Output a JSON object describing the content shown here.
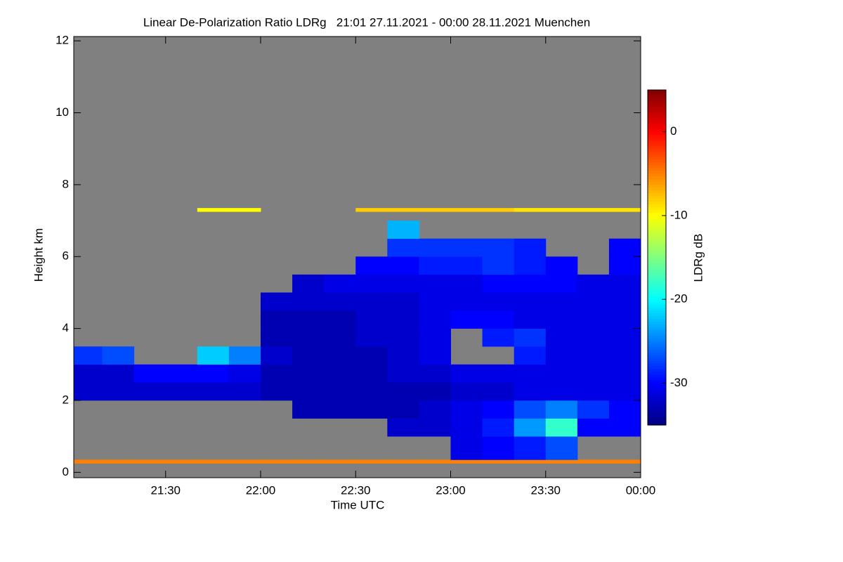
{
  "chart_data": {
    "type": "heatmap",
    "title": "Linear De-Polarization Ratio LDRg   21:01 27.11.2021 - 00:00 28.11.2021 Muenchen",
    "xlabel": "Time UTC",
    "ylabel": "Height km",
    "colorbar_label": "LDRg dB",
    "background": "#808080",
    "xlim": [
      1261,
      1440
    ],
    "xticks": [
      {
        "value": 1290,
        "label": "21:30"
      },
      {
        "value": 1320,
        "label": "22:00"
      },
      {
        "value": 1350,
        "label": "22:30"
      },
      {
        "value": 1380,
        "label": "23:00"
      },
      {
        "value": 1410,
        "label": "23:30"
      },
      {
        "value": 1440,
        "label": "00:00"
      }
    ],
    "ylim": [
      -0.15,
      12.12
    ],
    "yticks": [
      0,
      2,
      4,
      6,
      8,
      10,
      12
    ],
    "zlim": [
      -35,
      5
    ],
    "zticks": [
      0,
      -10,
      -20,
      -30
    ],
    "colormap": "jet",
    "x_bins": [
      1261,
      1270,
      1280,
      1290,
      1300,
      1310,
      1320,
      1330,
      1340,
      1350,
      1360,
      1370,
      1380,
      1390,
      1400,
      1410,
      1420,
      1430,
      1440
    ],
    "y_bins": [
      0,
      0.25,
      0.35,
      1,
      1.5,
      2,
      2.5,
      3,
      3.5,
      4,
      4.5,
      5,
      5.5,
      6,
      6.5,
      7,
      7.25,
      7.35
    ],
    "z": [
      [
        null,
        null,
        null,
        null,
        null,
        null,
        null,
        null,
        null,
        null,
        null,
        null,
        null,
        null,
        null,
        null,
        null,
        null
      ],
      [
        -5,
        -5,
        -5,
        -5,
        -5,
        -5,
        -5,
        -5,
        -5,
        -5,
        -5,
        -5,
        -5,
        -5,
        -5,
        -5,
        -5,
        -5
      ],
      [
        null,
        null,
        null,
        null,
        null,
        null,
        null,
        null,
        null,
        null,
        null,
        null,
        -31,
        -30,
        -29,
        -27,
        null,
        null
      ],
      [
        null,
        null,
        null,
        null,
        null,
        null,
        null,
        null,
        null,
        null,
        -32,
        -32,
        -31,
        -29,
        -24,
        -18,
        -30,
        -30
      ],
      [
        null,
        null,
        null,
        null,
        null,
        null,
        null,
        -33,
        -33,
        -33,
        -33,
        -32,
        -31,
        -30,
        -27,
        -25,
        -28,
        -30
      ],
      [
        -32,
        -32,
        -32,
        -32,
        -32,
        -32,
        -33,
        -33,
        -33,
        -33,
        -33,
        -33,
        -32,
        -32,
        -31,
        -31,
        -31,
        -31
      ],
      [
        -32,
        -32,
        -30,
        -30,
        -30,
        -31,
        -33,
        -33,
        -33,
        -33,
        -32,
        -32,
        -31,
        -31,
        -31,
        -31,
        -31,
        -31
      ],
      [
        -28,
        -27,
        null,
        null,
        -22,
        -25,
        -32,
        -33,
        -33,
        -33,
        -32,
        -31,
        null,
        null,
        -29,
        -31,
        -31,
        -31
      ],
      [
        null,
        null,
        null,
        null,
        null,
        null,
        -33,
        -33,
        -33,
        -32,
        -32,
        -31,
        null,
        -29,
        -28,
        -31,
        -31,
        -31
      ],
      [
        null,
        null,
        null,
        null,
        null,
        null,
        -33,
        -33,
        -33,
        -32,
        -32,
        -31,
        -30,
        -30,
        -31,
        -31,
        -31,
        -31
      ],
      [
        null,
        null,
        null,
        null,
        null,
        null,
        -32,
        -32,
        -32,
        -32,
        -32,
        -31,
        -31,
        -31,
        -31,
        -31,
        -31,
        -31
      ],
      [
        null,
        null,
        null,
        null,
        null,
        null,
        null,
        -32,
        -31,
        -31,
        -31,
        -31,
        -31,
        -30,
        -30,
        -30,
        -31,
        -31
      ],
      [
        null,
        null,
        null,
        null,
        null,
        null,
        null,
        null,
        null,
        -30,
        -30,
        -29,
        -29,
        -28,
        -29,
        -30,
        null,
        -30
      ],
      [
        null,
        null,
        null,
        null,
        null,
        null,
        null,
        null,
        null,
        null,
        -28,
        -28,
        -28,
        -28,
        -29,
        null,
        null,
        -30
      ],
      [
        null,
        null,
        null,
        null,
        null,
        null,
        null,
        null,
        null,
        null,
        -23,
        null,
        null,
        null,
        null,
        null,
        null,
        null
      ],
      [
        null,
        null,
        null,
        null,
        null,
        null,
        null,
        null,
        null,
        null,
        null,
        null,
        null,
        null,
        null,
        null,
        null,
        null
      ],
      [
        null,
        null,
        null,
        null,
        -10,
        -10,
        null,
        null,
        null,
        -8,
        -8,
        -8,
        -8,
        -8,
        -9,
        -9,
        -9,
        -9
      ]
    ]
  }
}
